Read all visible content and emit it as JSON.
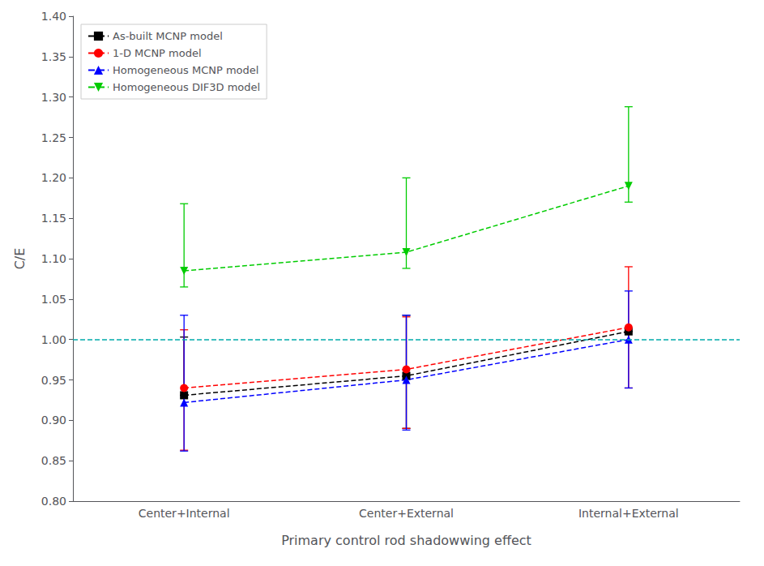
{
  "chart_data": {
    "type": "line",
    "x_label": "Primary control rod shadowwing effect",
    "y_label": "C/E",
    "categories": [
      "Center+Internal",
      "Center+External",
      "Internal+External"
    ],
    "series": [
      {
        "name": "As-built MCNP model",
        "color": "black",
        "marker": "square",
        "line_style": "dashed",
        "values": [
          0.931,
          0.955,
          1.01
        ],
        "yerr_neg": [
          0.0,
          0.065,
          0.0
        ],
        "yerr_pos": [
          0.072,
          0.075,
          0.0
        ]
      },
      {
        "name": "1-D MCNP model",
        "color": "red",
        "marker": "circle",
        "line_style": "dashed",
        "values": [
          0.94,
          0.963,
          1.015
        ],
        "yerr_neg": [
          0.077,
          0.073,
          0.075
        ],
        "yerr_pos": [
          0.072,
          0.065,
          0.075
        ]
      },
      {
        "name": "Homogeneous MCNP model",
        "color": "blue",
        "marker": "triangle-up",
        "line_style": "dashed",
        "values": [
          0.922,
          0.95,
          1.0
        ],
        "yerr_neg": [
          0.06,
          0.062,
          0.06
        ],
        "yerr_pos": [
          0.108,
          0.08,
          0.06
        ]
      },
      {
        "name": "Homogeneous DIF3D model",
        "color": "#00CC00",
        "marker": "triangle-down",
        "line_style": "dashed",
        "values": [
          1.085,
          1.108,
          1.19
        ],
        "yerr_neg": [
          0.02,
          0.02,
          0.02
        ],
        "yerr_pos": [
          0.083,
          0.092,
          0.098
        ]
      }
    ],
    "reference_line": {
      "value": 1.0,
      "color": "#00AAAA",
      "line_style": "dashed"
    },
    "ylim": [
      0.8,
      1.4
    ],
    "yticks": [
      {
        "value": 0.8,
        "label": "0.80"
      },
      0.85,
      {
        "value": 0.9,
        "label": "0.90"
      },
      0.95,
      {
        "value": 1.0,
        "label": "1.00"
      },
      1.05,
      {
        "value": 1.1,
        "label": "1.10"
      },
      1.15,
      {
        "value": 1.2,
        "label": "1.20"
      },
      1.25,
      {
        "value": 1.3,
        "label": "1.30"
      },
      1.35,
      {
        "value": 1.4,
        "label": "1.40"
      }
    ],
    "grid": false,
    "legend": "upper left"
  }
}
